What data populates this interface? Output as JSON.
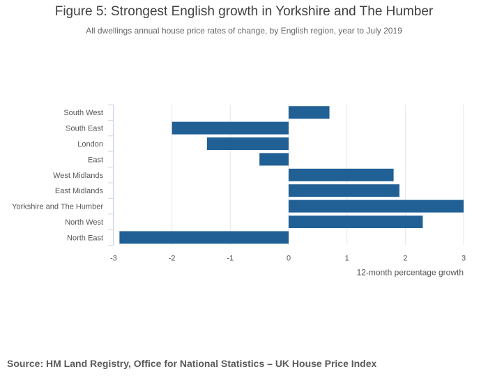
{
  "title": "Figure 5: Strongest English growth in Yorkshire and The Humber",
  "subtitle": "All dwellings annual house price rates of change, by English region, year to July 2019",
  "source": "Source: HM Land Registry, Office for National Statistics – UK House Price Index",
  "chart_data": {
    "type": "bar",
    "orientation": "horizontal",
    "categories": [
      "South West",
      "South East",
      "London",
      "East",
      "West Midlands",
      "East Midlands",
      "Yorkshire and The Humber",
      "North West",
      "North East"
    ],
    "values": [
      0.7,
      -2.0,
      -1.4,
      -0.5,
      1.8,
      1.9,
      3.0,
      2.3,
      -2.9
    ],
    "xlim": [
      -3,
      3
    ],
    "xticks": [
      "-3",
      "-2",
      "-1",
      "0",
      "1",
      "2",
      "3"
    ],
    "xlabel": "12-month percentage growth",
    "grid": true,
    "bar_color": "#206095"
  }
}
